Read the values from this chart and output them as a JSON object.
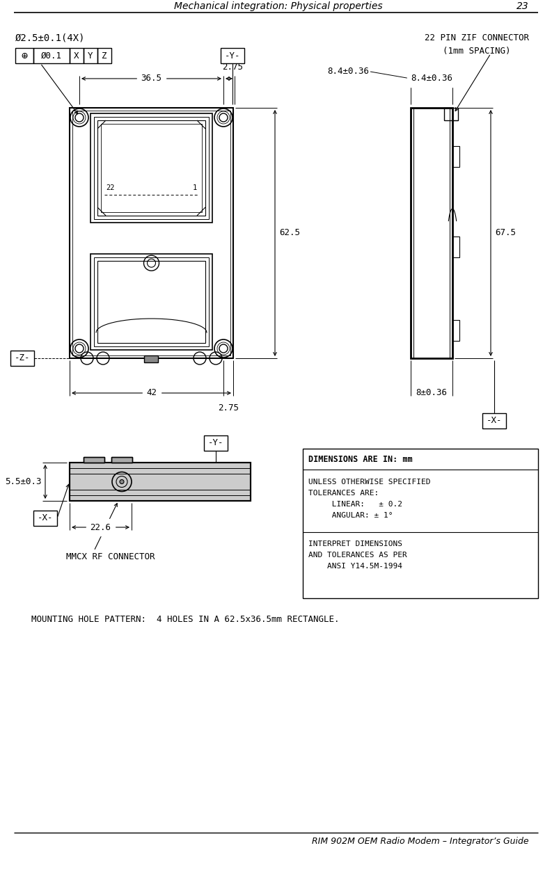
{
  "page_title": "Mechanical integration: Physical properties",
  "page_number": "23",
  "footer": "RIM 902M OEM Radio Modem – Integrator’s Guide",
  "bg_color": "#ffffff",
  "annotations": {
    "hole_label": "Ø2.5±0.1(4X)",
    "gd_t_symbol": "⊕",
    "gd_t_diameter": "Ø0.1",
    "gd_t_x": "X",
    "gd_t_y": "Y",
    "gd_t_z": "Z",
    "y_label": "-Y-",
    "z_label": "-Z-",
    "x_label": "-X-",
    "dim_36_5": "36.5",
    "dim_2_75": "2.75",
    "dim_62_5": "62.5",
    "dim_42": "42",
    "zif_title": "22 PIN ZIF CONNECTOR",
    "zif_subtitle": "(1mm SPACING)",
    "dim_8_4": "8.4±0.36",
    "dim_67_5": "67.5",
    "dim_8": "8±0.36",
    "dim_5_5": "5.5±0.3",
    "dim_22_6": "22.6",
    "mmcx_label": "MMCX RF CONNECTOR",
    "mounting_text": "MOUNTING HOLE PATTERN:  4 HOLES IN A 62.5x36.5mm RECTANGLE.",
    "note_line1": "DIMENSIONS ARE IN: mm",
    "note_line2": "UNLESS OTHERWISE SPECIFIED",
    "note_line3": "TOLERANCES ARE:",
    "note_line4": "     LINEAR:   ± 0.2",
    "note_line5": "     ANGULAR: ± 1°",
    "note_line6": "INTERPRET DIMENSIONS",
    "note_line7": "AND TOLERANCES AS PER",
    "note_line8": "    ANSI Y14.5M-1994",
    "pin22": "22",
    "pin1": "1"
  }
}
